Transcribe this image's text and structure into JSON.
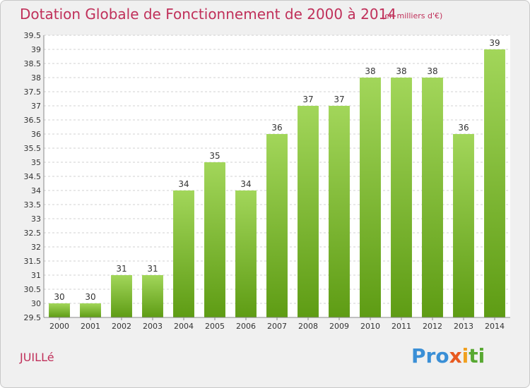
{
  "header": {
    "title": "Dotation Globale de Fonctionnement de 2000 à 2014",
    "subtitle": "(en milliers d'€)"
  },
  "footer": {
    "commune": "JUILLé",
    "logo": {
      "p1": "Pro",
      "p2": "x",
      "p3": "i",
      "p4": "ti"
    }
  },
  "colors": {
    "bar_light": "#a2d65a",
    "bar_dark": "#5e9c14",
    "title": "#c0305a"
  },
  "chart_data": {
    "type": "bar",
    "categories": [
      "2000",
      "2001",
      "2002",
      "2003",
      "2004",
      "2005",
      "2006",
      "2007",
      "2008",
      "2009",
      "2010",
      "2011",
      "2012",
      "2013",
      "2014"
    ],
    "values": [
      30,
      30,
      31,
      31,
      34,
      35,
      34,
      36,
      37,
      37,
      38,
      38,
      38,
      36,
      39
    ],
    "title": "Dotation Globale de Fonctionnement de 2000 à 2014",
    "subtitle": "(en milliers d'€)",
    "ylim": [
      29.5,
      39.5
    ],
    "yticks": [
      "29.5",
      "30",
      "30.5",
      "31",
      "31.5",
      "32",
      "32.5",
      "33",
      "33.5",
      "34",
      "34.5",
      "35",
      "35.5",
      "36",
      "36.5",
      "37",
      "37.5",
      "38",
      "38.5",
      "39",
      "39.5"
    ],
    "grid": true,
    "legend": "none"
  }
}
